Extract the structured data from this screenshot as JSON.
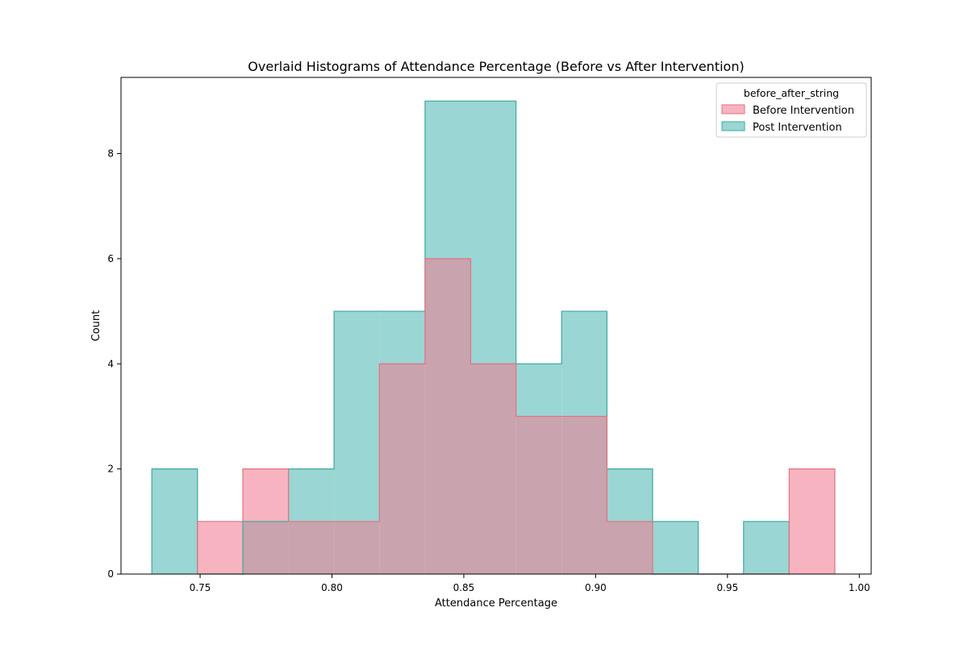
{
  "chart_data": {
    "type": "histogram",
    "title": "Overlaid Histograms of Attendance Percentage (Before vs After Intervention)",
    "xlabel": "Attendance Percentage",
    "ylabel": "Count",
    "xlim": [
      0.72,
      1.0045
    ],
    "ylim": [
      0,
      9.45
    ],
    "xticks": [
      0.75,
      0.8,
      0.85,
      0.9,
      0.95,
      1.0
    ],
    "xtick_labels": [
      "0.75",
      "0.80",
      "0.85",
      "0.90",
      "0.95",
      "1.00"
    ],
    "yticks": [
      0,
      2,
      4,
      6,
      8
    ],
    "ytick_labels": [
      "0",
      "2",
      "4",
      "6",
      "8"
    ],
    "grid": false,
    "legend": {
      "title": "before_after_string",
      "placement": "top-right"
    },
    "bin_edges": [
      0.7317,
      0.749,
      0.7662,
      0.7835,
      0.8008,
      0.818,
      0.8353,
      0.8526,
      0.8698,
      0.8871,
      0.9043,
      0.9216,
      0.9389,
      0.9561,
      0.9734,
      0.9907
    ],
    "series": [
      {
        "name": "Post Intervention",
        "fill": "#9ad6d3",
        "stroke": "#3aaa9e",
        "counts": [
          2,
          0,
          1,
          2,
          5,
          5,
          9,
          9,
          4,
          5,
          2,
          1,
          0,
          1,
          0
        ]
      },
      {
        "name": "Before Intervention",
        "fill": "#f7b4c0",
        "stroke": "#e3727f",
        "counts": [
          0,
          1,
          2,
          1,
          1,
          4,
          6,
          4,
          3,
          3,
          1,
          0,
          0,
          0,
          2
        ]
      }
    ],
    "overlap_fill": "#c9a3ad"
  }
}
